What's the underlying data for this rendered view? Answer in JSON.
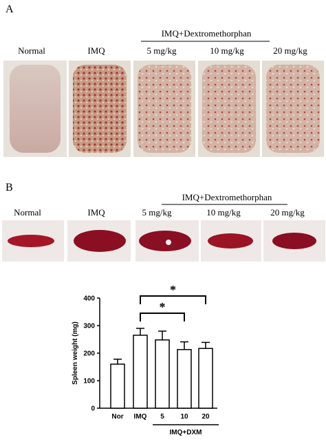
{
  "panel_a": {
    "label": "A",
    "group_label": "IMQ+Dextromethorphan",
    "labels": [
      "Normal",
      "IMQ",
      "5 mg/kg",
      "10 mg/kg",
      "20 mg/kg"
    ]
  },
  "panel_b": {
    "label": "B",
    "group_label": "IMQ+Dextromethorphan",
    "labels": [
      "Normal",
      "IMQ",
      "5 mg/kg",
      "10 mg/kg",
      "20 mg/kg"
    ]
  },
  "chart_data": {
    "type": "bar",
    "ylabel": "Spleen weight (mg)",
    "categories": [
      "Nor",
      "IMQ",
      "5",
      "10",
      "20"
    ],
    "values": [
      160,
      265,
      248,
      213,
      217
    ],
    "errors": [
      18,
      25,
      32,
      28,
      22
    ],
    "color": "#ffffff",
    "ylim": [
      0,
      400
    ],
    "yticks": [
      0,
      100,
      200,
      300,
      400
    ],
    "group_label": "IMQ+DXM",
    "annotations": [
      "*",
      "*"
    ]
  }
}
